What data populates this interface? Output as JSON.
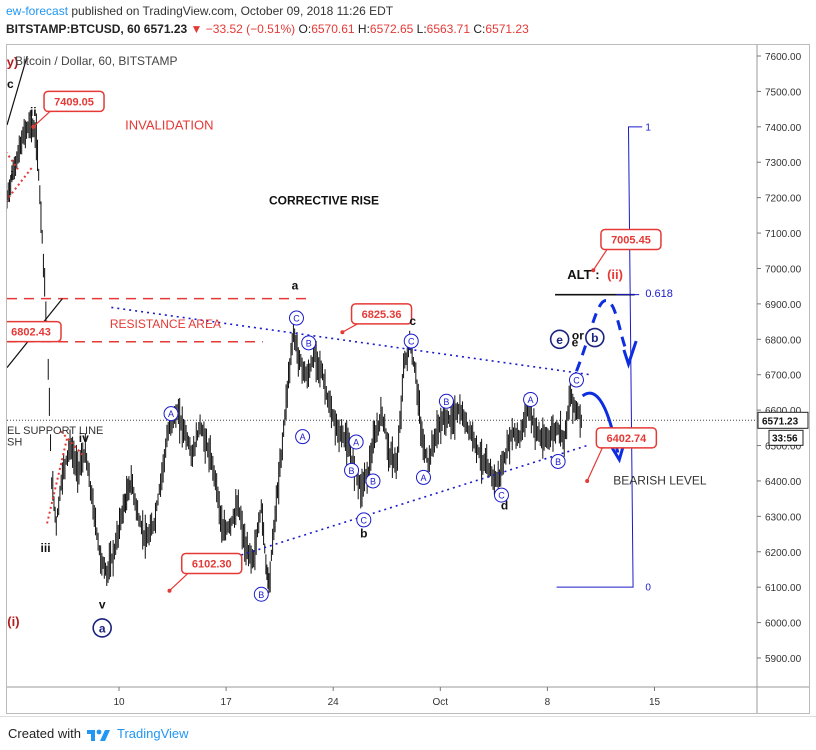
{
  "header": {
    "publisher": "ew-forecast",
    "published_text": "published on TradingView.com, October 09, 2018 11:26 EDT",
    "symbol_line": "BITSTAMP:BTCUSD, 60",
    "price": "6571.23",
    "change": "−33.52 (−0.51%)",
    "open": "6570.61",
    "high": "6572.65",
    "low": "6563.71",
    "close": "6571.23"
  },
  "footer": {
    "created_label": "Created with",
    "brand": "TradingView"
  },
  "colors": {
    "red": "#e53935",
    "blue": "#1a1acc",
    "navy": "#1a237e",
    "candle": "#111111",
    "axis": "#555555"
  },
  "chart_data": {
    "type": "candlestick",
    "title": "Bitcoin / Dollar, 60, BITSTAMP",
    "ylim": [
      5820,
      7650
    ],
    "y_ticks": [
      5900,
      6000,
      6100,
      6200,
      6300,
      6400,
      6500,
      6600,
      6700,
      6800,
      6900,
      7000,
      7100,
      7200,
      7300,
      7400,
      7500,
      7600
    ],
    "y_tick_labels": [
      "5900.00",
      "6000.00",
      "6100.00",
      "6200.00",
      "6300.00",
      "6400.00",
      "6500.00",
      "6600.00",
      "6700.00",
      "6800.00",
      "6900.00",
      "7000.00",
      "7100.00",
      "7200.00",
      "7300.00",
      "7400.00",
      "7500.00",
      "7600.00"
    ],
    "x_range_days": [
      2,
      22
    ],
    "x_ticks": [
      {
        "day": 10,
        "label": "10"
      },
      {
        "day": 17,
        "label": "17"
      },
      {
        "day": 24,
        "label": "24"
      },
      {
        "day": 31,
        "label": "Oct"
      },
      {
        "day": 38,
        "label": "8"
      },
      {
        "day": 45,
        "label": "15"
      }
    ],
    "x_axis_days": [
      2.5,
      51
    ],
    "last_price": {
      "value": 6571.23,
      "label": "6571.23",
      "countdown": "33:56"
    },
    "price_path": [
      [
        2.6,
        7180
      ],
      [
        3.0,
        7260
      ],
      [
        3.4,
        7320
      ],
      [
        3.8,
        7380
      ],
      [
        4.2,
        7410
      ],
      [
        4.6,
        7370
      ],
      [
        4.9,
        7160
      ],
      [
        5.3,
        6820
      ],
      [
        5.6,
        6400
      ],
      [
        5.9,
        6280
      ],
      [
        6.3,
        6420
      ],
      [
        6.8,
        6500
      ],
      [
        7.3,
        6430
      ],
      [
        7.8,
        6480
      ],
      [
        8.3,
        6330
      ],
      [
        8.8,
        6180
      ],
      [
        9.2,
        6140
      ],
      [
        9.7,
        6200
      ],
      [
        10.2,
        6310
      ],
      [
        10.8,
        6400
      ],
      [
        11.3,
        6290
      ],
      [
        11.8,
        6230
      ],
      [
        12.3,
        6280
      ],
      [
        12.8,
        6420
      ],
      [
        13.3,
        6560
      ],
      [
        13.8,
        6590
      ],
      [
        14.3,
        6540
      ],
      [
        14.8,
        6470
      ],
      [
        15.3,
        6560
      ],
      [
        15.8,
        6490
      ],
      [
        16.3,
        6410
      ],
      [
        16.8,
        6250
      ],
      [
        17.3,
        6280
      ],
      [
        17.8,
        6330
      ],
      [
        18.3,
        6200
      ],
      [
        18.8,
        6180
      ],
      [
        19.3,
        6330
      ],
      [
        19.6,
        6170
      ],
      [
        19.8,
        6110
      ],
      [
        20.2,
        6300
      ],
      [
        20.6,
        6470
      ],
      [
        21.0,
        6660
      ],
      [
        21.4,
        6820
      ],
      [
        21.8,
        6740
      ],
      [
        22.3,
        6690
      ],
      [
        22.8,
        6760
      ],
      [
        23.3,
        6700
      ],
      [
        23.8,
        6600
      ],
      [
        24.3,
        6540
      ],
      [
        24.8,
        6520
      ],
      [
        25.3,
        6450
      ],
      [
        25.8,
        6380
      ],
      [
        26.3,
        6430
      ],
      [
        26.7,
        6520
      ],
      [
        27.2,
        6590
      ],
      [
        27.7,
        6470
      ],
      [
        28.2,
        6450
      ],
      [
        28.6,
        6720
      ],
      [
        29.0,
        6790
      ],
      [
        29.4,
        6700
      ],
      [
        29.8,
        6520
      ],
      [
        30.2,
        6450
      ],
      [
        30.7,
        6530
      ],
      [
        31.2,
        6580
      ],
      [
        31.7,
        6570
      ],
      [
        32.2,
        6600
      ],
      [
        32.7,
        6560
      ],
      [
        33.2,
        6520
      ],
      [
        33.7,
        6460
      ],
      [
        34.2,
        6430
      ],
      [
        34.7,
        6400
      ],
      [
        35.2,
        6460
      ],
      [
        35.7,
        6540
      ],
      [
        36.2,
        6520
      ],
      [
        36.7,
        6610
      ],
      [
        37.2,
        6550
      ],
      [
        37.7,
        6510
      ],
      [
        38.2,
        6530
      ],
      [
        38.7,
        6550
      ],
      [
        39.1,
        6520
      ],
      [
        39.5,
        6640
      ],
      [
        39.9,
        6600
      ],
      [
        40.3,
        6571
      ]
    ],
    "price_boxes": [
      {
        "label": "7409.05",
        "value": 7409.05,
        "day": 4.6
      },
      {
        "label": "7005.45",
        "value": 7005.45,
        "day": 43.0
      },
      {
        "label": "6825.36",
        "value": 6825.36,
        "day": 25.0
      },
      {
        "label": "6802.43",
        "value": 6802.43,
        "day": 2.0
      },
      {
        "label": "6402.74",
        "value": 6402.74,
        "day": 43.5
      },
      {
        "label": "6102.30",
        "value": 6102.3,
        "day": 13.8
      }
    ],
    "annotations": {
      "invalidation": "INVALIDATION",
      "corrective_rise": "CORRECTIVE RISE",
      "resistance_area": "RESISTANCE AREA",
      "support_line": "EL SUPPORT LINE",
      "support_line_2": "SH",
      "alt": "ALT :",
      "alt_ii": "(ii)",
      "fib": "0.618",
      "fib_1": "1",
      "fib_0": "0",
      "bearish_level": "BEARISH LEVEL",
      "or": "or"
    },
    "wave_labels": [
      {
        "text": "(y)",
        "day": 2.9,
        "value": 7570,
        "color": "red"
      },
      {
        "text": "c",
        "day": 2.9,
        "value": 7510,
        "color": "black"
      },
      {
        "text": "ii",
        "day": 4.4,
        "value": 7430,
        "color": "black"
      },
      {
        "text": "i",
        "day": 3.0,
        "value": 7250,
        "color": "black"
      },
      {
        "text": "iv",
        "day": 7.7,
        "value": 6510,
        "color": "black"
      },
      {
        "text": "iii",
        "day": 5.2,
        "value": 6200,
        "color": "black"
      },
      {
        "text": "v",
        "day": 8.9,
        "value": 6040,
        "color": "black"
      },
      {
        "text": "(i)",
        "day": 3.1,
        "value": 5990,
        "color": "red"
      },
      {
        "text": "a",
        "day": 21.5,
        "value": 6940,
        "color": "black"
      },
      {
        "text": "b",
        "day": 26.0,
        "value": 6240,
        "color": "black"
      },
      {
        "text": "c",
        "day": 29.2,
        "value": 6840,
        "color": "black"
      },
      {
        "text": "d",
        "day": 35.2,
        "value": 6320,
        "color": "black"
      },
      {
        "text": "e",
        "day": 39.8,
        "value": 6780,
        "color": "black"
      }
    ],
    "circle_labels": [
      {
        "text": "a",
        "day": 8.9,
        "value": 5985,
        "big": true
      },
      {
        "text": "A",
        "day": 13.4,
        "value": 6590
      },
      {
        "text": "B",
        "day": 19.3,
        "value": 6080
      },
      {
        "text": "C",
        "day": 21.6,
        "value": 6860
      },
      {
        "text": "B",
        "day": 22.4,
        "value": 6790
      },
      {
        "text": "A",
        "day": 22.0,
        "value": 6525
      },
      {
        "text": "A",
        "day": 25.5,
        "value": 6510
      },
      {
        "text": "B",
        "day": 25.2,
        "value": 6430
      },
      {
        "text": "C",
        "day": 26.0,
        "value": 6290
      },
      {
        "text": "B",
        "day": 26.6,
        "value": 6400
      },
      {
        "text": "C",
        "day": 29.1,
        "value": 6795
      },
      {
        "text": "A",
        "day": 29.9,
        "value": 6410
      },
      {
        "text": "B",
        "day": 31.4,
        "value": 6625
      },
      {
        "text": "C",
        "day": 35.0,
        "value": 6360
      },
      {
        "text": "A",
        "day": 36.9,
        "value": 6630
      },
      {
        "text": "B",
        "day": 38.7,
        "value": 6455
      },
      {
        "text": "C",
        "day": 39.9,
        "value": 6685
      },
      {
        "text": "e",
        "day": 38.8,
        "value": 6800,
        "big": true
      },
      {
        "text": "b",
        "day": 41.1,
        "value": 6805,
        "big": true
      }
    ]
  }
}
